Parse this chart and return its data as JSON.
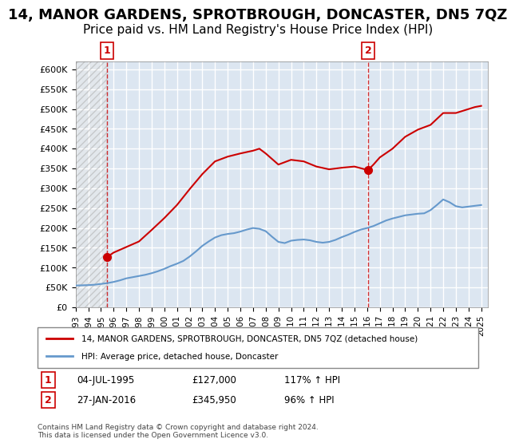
{
  "title": "14, MANOR GARDENS, SPROTBROUGH, DONCASTER, DN5 7QZ",
  "subtitle": "Price paid vs. HM Land Registry's House Price Index (HPI)",
  "title_fontsize": 13,
  "subtitle_fontsize": 11,
  "xlim": [
    1993.0,
    2025.5
  ],
  "ylim": [
    0,
    620000
  ],
  "yticks": [
    0,
    50000,
    100000,
    150000,
    200000,
    250000,
    300000,
    350000,
    400000,
    450000,
    500000,
    550000,
    600000
  ],
  "ytick_labels": [
    "£0",
    "£50K",
    "£100K",
    "£150K",
    "£200K",
    "£250K",
    "£300K",
    "£350K",
    "£400K",
    "£450K",
    "£500K",
    "£550K",
    "£600K"
  ],
  "xticks": [
    1993,
    1994,
    1995,
    1996,
    1997,
    1998,
    1999,
    2000,
    2001,
    2002,
    2003,
    2004,
    2005,
    2006,
    2007,
    2008,
    2009,
    2010,
    2011,
    2012,
    2013,
    2014,
    2015,
    2016,
    2017,
    2018,
    2019,
    2020,
    2021,
    2022,
    2023,
    2024,
    2025
  ],
  "sale1_x": 1995.5,
  "sale1_y": 127000,
  "sale1_label": "1",
  "sale1_date": "04-JUL-1995",
  "sale1_price": "£127,000",
  "sale1_hpi": "117% ↑ HPI",
  "sale2_x": 2016.07,
  "sale2_y": 345950,
  "sale2_label": "2",
  "sale2_date": "27-JAN-2016",
  "sale2_price": "£345,950",
  "sale2_hpi": "96% ↑ HPI",
  "property_line_color": "#cc0000",
  "hpi_line_color": "#6699cc",
  "hatch_color": "#cccccc",
  "bg_color": "#dce6f1",
  "grid_color": "#ffffff",
  "legend_property": "14, MANOR GARDENS, SPROTBROUGH, DONCASTER, DN5 7QZ (detached house)",
  "legend_hpi": "HPI: Average price, detached house, Doncaster",
  "footnote": "Contains HM Land Registry data © Crown copyright and database right 2024.\nThis data is licensed under the Open Government Licence v3.0.",
  "hpi_x": [
    1993.0,
    1993.5,
    1994.0,
    1994.5,
    1995.0,
    1995.5,
    1996.0,
    1996.5,
    1997.0,
    1997.5,
    1998.0,
    1998.5,
    1999.0,
    1999.5,
    2000.0,
    2000.5,
    2001.0,
    2001.5,
    2002.0,
    2002.5,
    2003.0,
    2003.5,
    2004.0,
    2004.5,
    2005.0,
    2005.5,
    2006.0,
    2006.5,
    2007.0,
    2007.5,
    2008.0,
    2008.5,
    2009.0,
    2009.5,
    2010.0,
    2010.5,
    2011.0,
    2011.5,
    2012.0,
    2012.5,
    2013.0,
    2013.5,
    2014.0,
    2014.5,
    2015.0,
    2015.5,
    2016.0,
    2016.5,
    2017.0,
    2017.5,
    2018.0,
    2018.5,
    2019.0,
    2019.5,
    2020.0,
    2020.5,
    2021.0,
    2021.5,
    2022.0,
    2022.5,
    2023.0,
    2023.5,
    2024.0,
    2024.5,
    2025.0
  ],
  "hpi_y": [
    55000,
    55500,
    56000,
    57000,
    59000,
    61000,
    64000,
    68000,
    73000,
    76000,
    79000,
    82000,
    86000,
    91000,
    97000,
    104000,
    110000,
    117000,
    128000,
    141000,
    155000,
    166000,
    176000,
    182000,
    185000,
    187000,
    191000,
    196000,
    200000,
    198000,
    192000,
    178000,
    165000,
    162000,
    168000,
    170000,
    171000,
    169000,
    165000,
    163000,
    165000,
    170000,
    177000,
    183000,
    190000,
    196000,
    200000,
    205000,
    212000,
    219000,
    224000,
    228000,
    232000,
    234000,
    236000,
    237000,
    245000,
    258000,
    272000,
    265000,
    255000,
    252000,
    254000,
    256000,
    258000
  ],
  "prop_x": [
    1995.5,
    1996.0,
    1997.0,
    1998.0,
    1999.0,
    2000.0,
    2001.0,
    2002.0,
    2003.0,
    2004.0,
    2005.0,
    2006.0,
    2007.0,
    2007.5,
    2008.0,
    2009.0,
    2010.0,
    2011.0,
    2012.0,
    2013.0,
    2014.0,
    2015.0,
    2016.07,
    2016.5,
    2017.0,
    2018.0,
    2019.0,
    2020.0,
    2021.0,
    2022.0,
    2023.0,
    2024.0,
    2024.5,
    2025.0
  ],
  "prop_y": [
    127000,
    138000,
    152000,
    166000,
    195000,
    225000,
    258000,
    298000,
    336000,
    368000,
    380000,
    388000,
    395000,
    400000,
    388000,
    360000,
    372000,
    368000,
    355000,
    348000,
    352000,
    355000,
    345950,
    360000,
    378000,
    400000,
    430000,
    448000,
    460000,
    490000,
    490000,
    500000,
    505000,
    508000
  ]
}
